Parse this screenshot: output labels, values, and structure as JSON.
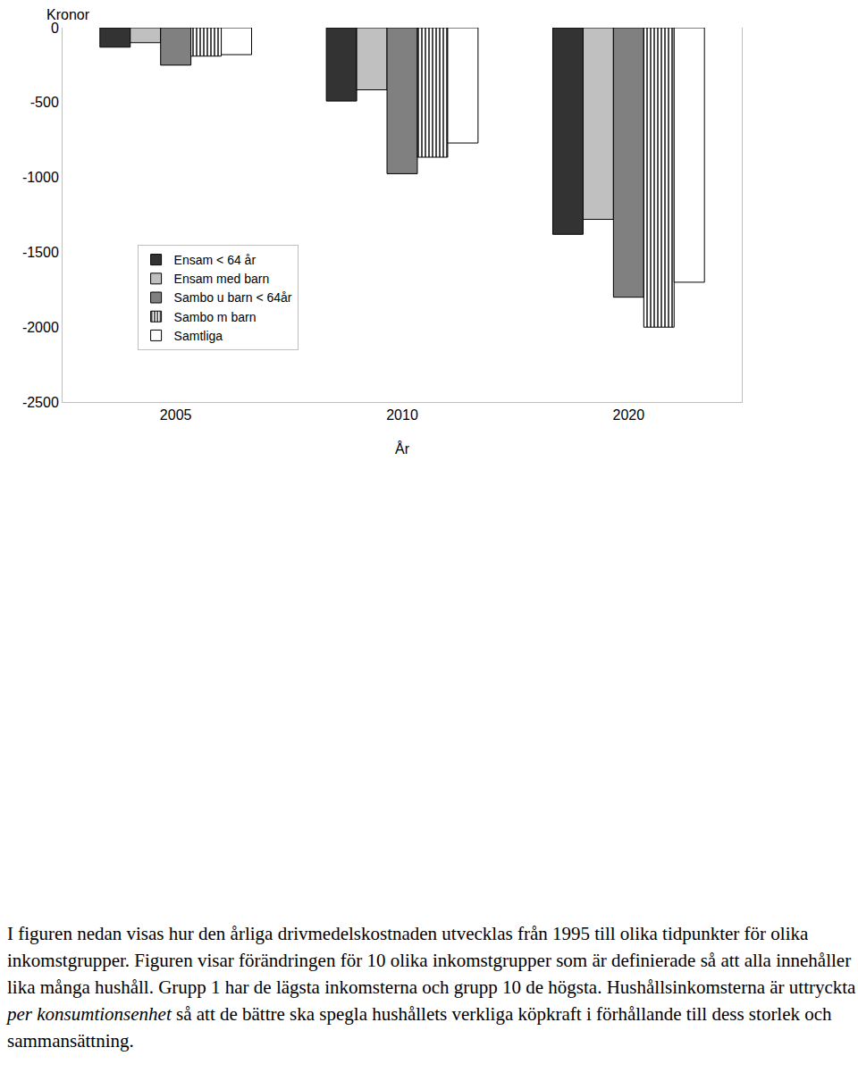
{
  "chart_data": {
    "type": "bar",
    "ylabel": "Kronor",
    "xlabel": "År",
    "categories": [
      "2005",
      "2010",
      "2020"
    ],
    "series": [
      {
        "name": "Ensam < 64 år",
        "color": "#333333",
        "values": [
          -130,
          -490,
          -1380
        ]
      },
      {
        "name": "Ensam med barn",
        "color": "#c0c0c0",
        "values": [
          -100,
          -415,
          -1280
        ]
      },
      {
        "name": "Sambo u barn < 64år",
        "color": "#808080",
        "values": [
          -250,
          -975,
          -1800
        ]
      },
      {
        "name": "Sambo m barn",
        "color": "#ffffff",
        "marker": "striped",
        "values": [
          -190,
          -865,
          -2000
        ]
      },
      {
        "name": "Samtliga",
        "color": "#ffffff",
        "values": [
          -180,
          -770,
          -1700
        ]
      }
    ],
    "ylim": [
      -2500,
      0
    ],
    "yticks": [
      -2500,
      -2000,
      -1500,
      -1000,
      -500,
      0
    ],
    "grid": false,
    "legend": "left",
    "annotations": [
      "I figuren nedan visas hur den årliga drivmedelskostnaden utvecklas från 1995 till olika tidpunkter för olika inkomstgrupper. Figuren visar förändringen för 10 olika inkomstgrupper som är definierade så att alla innehåller lika många hushåll. Grupp 1 har de lägsta inkomsterna och grupp 10 de högsta. Hushållsinkomsterna är uttryckta <i>per konsumtionsenhet</i> så att de bättre ska spegla hushållets verkliga köpkraft i förhållande till dess storlek och sammansättning."
    ]
  }
}
